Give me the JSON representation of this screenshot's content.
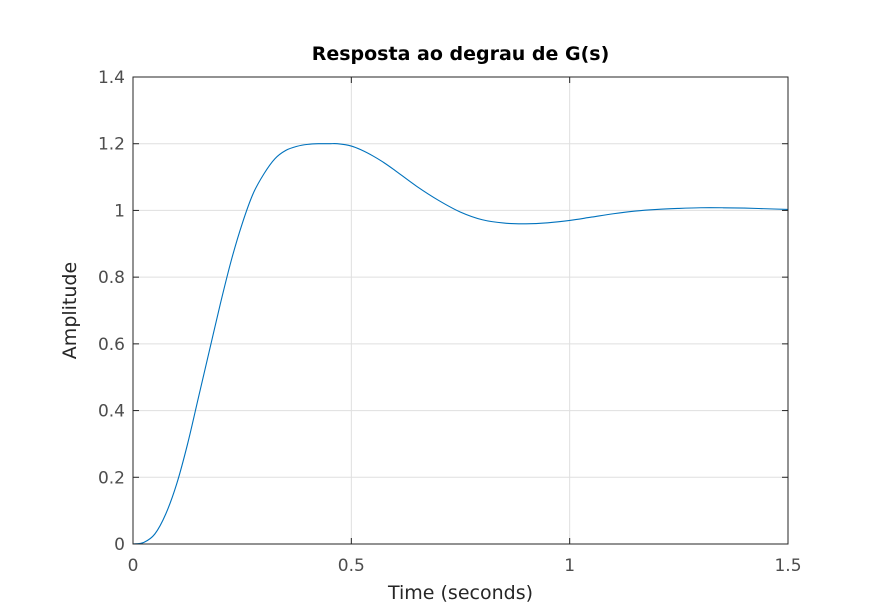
{
  "chart_data": {
    "type": "line",
    "title": "Resposta ao degrau de G(s)",
    "xlabel": "Time (seconds)",
    "ylabel": "Amplitude",
    "xlim": [
      0,
      1.5
    ],
    "ylim": [
      0,
      1.4
    ],
    "x_ticks": [
      0,
      0.5,
      1,
      1.5
    ],
    "x_tick_labels": [
      "0",
      "0.5",
      "1",
      "1.5"
    ],
    "y_ticks": [
      0,
      0.2,
      0.4,
      0.6,
      0.8,
      1,
      1.2,
      1.4
    ],
    "y_tick_labels": [
      "0",
      "0.2",
      "0.4",
      "0.6",
      "0.8",
      "1",
      "1.2",
      "1.4"
    ],
    "grid": true,
    "series": [
      {
        "color": "#0072bd",
        "x": [
          0,
          0.025,
          0.05,
          0.075,
          0.1,
          0.125,
          0.15,
          0.175,
          0.2,
          0.225,
          0.25,
          0.275,
          0.3,
          0.325,
          0.35,
          0.375,
          0.4,
          0.425,
          0.45,
          0.468,
          0.5,
          0.525,
          0.55,
          0.575,
          0.6,
          0.65,
          0.7,
          0.75,
          0.8,
          0.85,
          0.9,
          0.95,
          1.0,
          1.05,
          1.1,
          1.15,
          1.2,
          1.25,
          1.3,
          1.35,
          1.4,
          1.45,
          1.5
        ],
        "y": [
          0,
          0.005,
          0.03,
          0.09,
          0.18,
          0.3,
          0.44,
          0.58,
          0.72,
          0.85,
          0.96,
          1.05,
          1.11,
          1.155,
          1.18,
          1.192,
          1.198,
          1.2,
          1.2,
          1.2,
          1.193,
          1.18,
          1.163,
          1.143,
          1.12,
          1.072,
          1.03,
          0.995,
          0.972,
          0.962,
          0.96,
          0.963,
          0.97,
          0.98,
          0.99,
          0.998,
          1.003,
          1.006,
          1.008,
          1.008,
          1.007,
          1.005,
          1.003
        ]
      }
    ]
  }
}
